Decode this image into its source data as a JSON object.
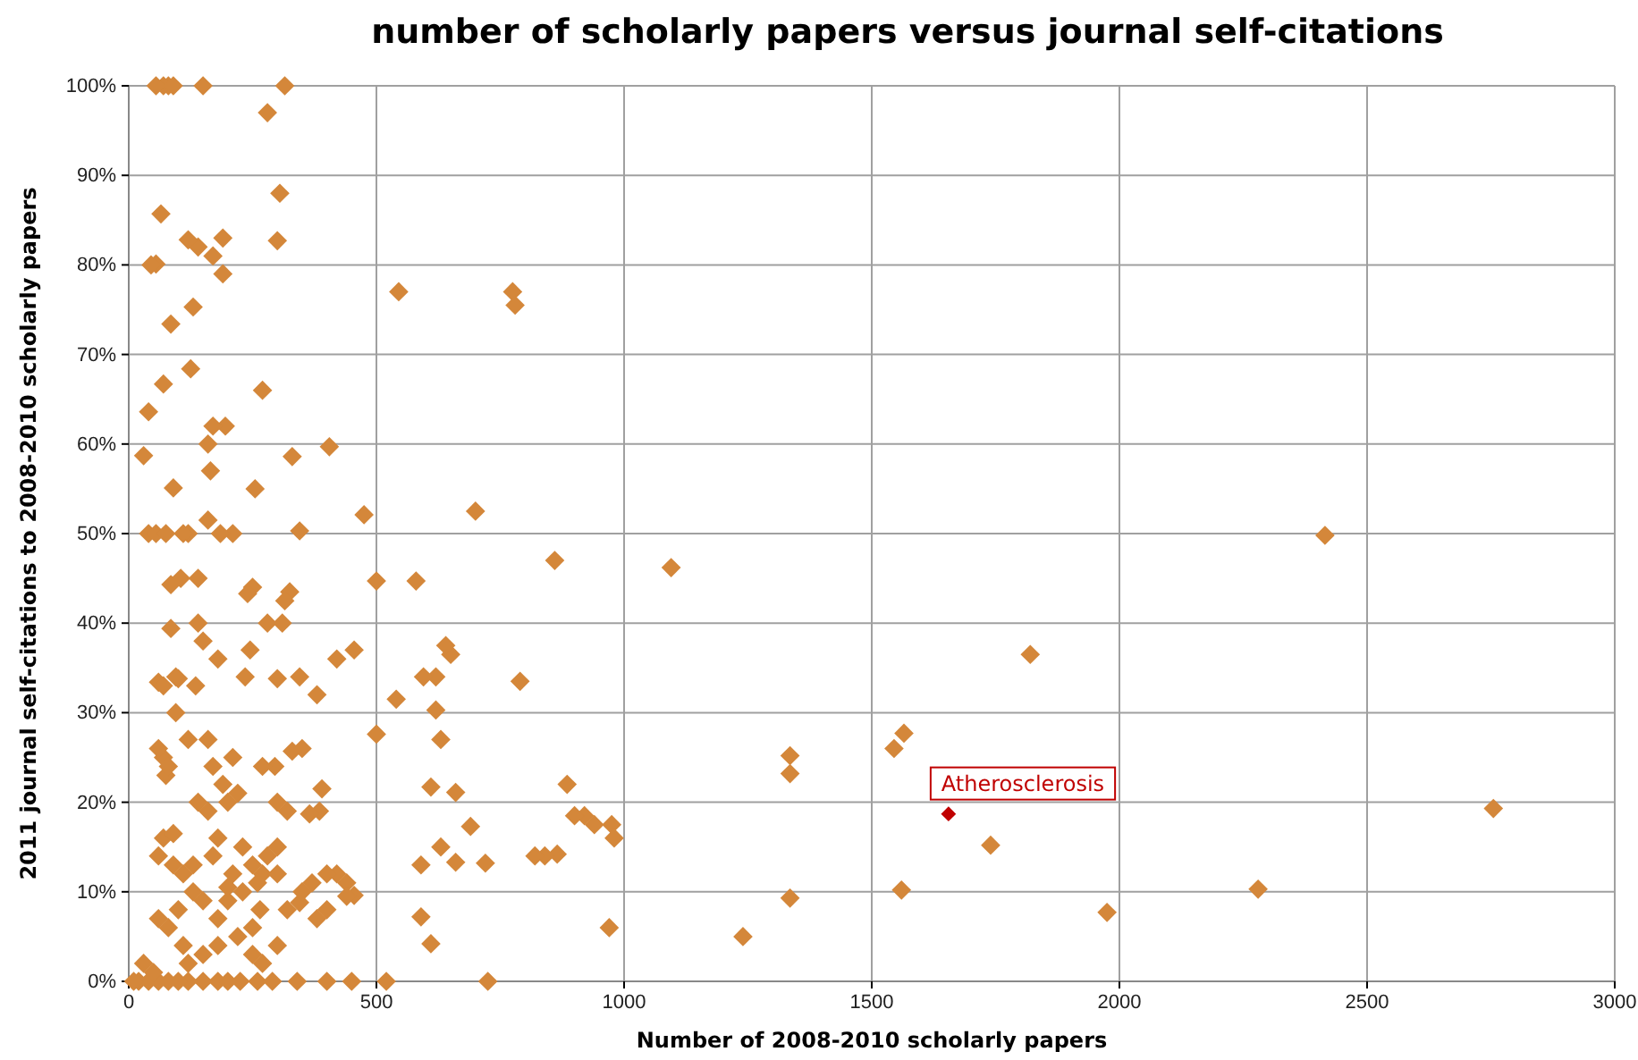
{
  "chart_data": {
    "type": "scatter",
    "title": "number of scholarly papers versus journal self-citations",
    "xlabel": "Number of 2008-2010 scholarly papers",
    "ylabel": "2011 journal self-citations to 2008-2010 scholarly papers",
    "xlim": [
      0,
      3000
    ],
    "ylim": [
      0,
      100
    ],
    "xticks": [
      0,
      500,
      1000,
      1500,
      2000,
      2500,
      3000
    ],
    "yticks": [
      {
        "value": 0,
        "label": "0%"
      },
      {
        "value": 10,
        "label": "10%"
      },
      {
        "value": 20,
        "label": "20%"
      },
      {
        "value": 30,
        "label": "30%"
      },
      {
        "value": 40,
        "label": "40%"
      },
      {
        "value": 50,
        "label": "50%"
      },
      {
        "value": 60,
        "label": "60%"
      },
      {
        "value": 70,
        "label": "70%"
      },
      {
        "value": 80,
        "label": "80%"
      },
      {
        "value": 90,
        "label": "90%"
      },
      {
        "value": 100,
        "label": "100%"
      }
    ],
    "grid": true,
    "marker": "diamond",
    "series": [
      {
        "color": "#d4873a",
        "x": [
          2415,
          1820,
          2755,
          2280,
          1975,
          1740,
          1560,
          1565,
          1545,
          1335,
          1335,
          1335,
          1240,
          1095,
          975,
          980,
          970,
          940,
          920,
          900,
          885,
          865,
          840,
          820,
          790,
          860,
          775,
          780,
          700,
          720,
          690,
          725,
          660,
          660,
          650,
          640,
          630,
          630,
          620,
          620,
          610,
          610,
          590,
          590,
          595,
          580,
          545,
          540,
          520,
          500,
          500,
          475,
          455,
          455,
          440,
          450,
          420,
          420,
          405,
          400,
          400,
          390,
          385,
          380,
          370,
          365,
          350,
          345,
          345,
          345,
          340,
          330,
          330,
          325,
          315,
          320,
          315,
          305,
          300,
          310,
          300,
          295,
          280,
          270,
          280,
          270,
          270,
          265,
          255,
          250,
          245,
          240,
          235,
          225,
          220,
          210,
          195,
          190,
          190,
          185,
          180,
          170,
          170,
          165,
          160,
          160,
          150,
          140,
          140,
          135,
          130,
          125,
          120,
          120,
          110,
          105,
          100,
          95,
          90,
          85,
          80,
          70,
          55,
          90,
          65,
          55,
          45,
          30,
          40,
          40,
          55,
          70,
          75,
          85,
          85,
          70,
          75,
          60,
          60,
          70,
          70,
          60,
          90,
          95,
          80,
          110,
          120,
          140,
          150,
          160,
          170,
          180,
          190,
          200,
          210,
          230,
          250,
          260,
          200,
          180,
          150,
          130,
          110,
          100,
          80,
          60,
          120,
          150,
          180,
          220,
          250,
          300,
          300,
          320,
          180,
          150,
          120,
          100,
          80,
          60,
          40,
          20,
          10,
          200,
          260,
          290,
          350,
          380,
          400,
          440,
          200,
          230,
          280,
          250,
          30,
          50,
          270,
          300,
          300,
          210,
          90,
          130,
          140,
          160,
          170
        ],
        "values": [
          49.8,
          36.5,
          19.3,
          10.3,
          7.7,
          15.2,
          10.2,
          27.7,
          26,
          25.2,
          23.2,
          9.3,
          5,
          46.2,
          17.5,
          16,
          6,
          17.5,
          18.5,
          18.5,
          22,
          14.2,
          14,
          14,
          33.5,
          47,
          77,
          75.5,
          52.5,
          13.2,
          17.3,
          0,
          13.3,
          21.1,
          36.5,
          37.5,
          15,
          27,
          30.3,
          34,
          21.7,
          4.2,
          7.2,
          13,
          34,
          44.7,
          77,
          31.5,
          0,
          44.7,
          27.6,
          52.1,
          37,
          9.6,
          11,
          0,
          36,
          12,
          59.7,
          0,
          8,
          21.5,
          19,
          32,
          11,
          18.7,
          26,
          50.3,
          34,
          8.8,
          0,
          58.6,
          25.7,
          43.5,
          42.5,
          19,
          100,
          88,
          82.7,
          40,
          33.8,
          24,
          40,
          66,
          97,
          24,
          12,
          8,
          55,
          44,
          37,
          43.3,
          34,
          0,
          21,
          50,
          62,
          83,
          79,
          50,
          36,
          81,
          62,
          57,
          60,
          51.5,
          100,
          82,
          45,
          33,
          75.3,
          68.4,
          82.8,
          50,
          50,
          45,
          33.8,
          30,
          55.1,
          73.4,
          100,
          100,
          100,
          100,
          85.7,
          80.1,
          80,
          58.7,
          63.6,
          50,
          50,
          66.7,
          50,
          44.3,
          39.4,
          25,
          23,
          26,
          33.4,
          33,
          16,
          14,
          16.5,
          34,
          24,
          12,
          27,
          40,
          38,
          27,
          24,
          16,
          22,
          20,
          12,
          15,
          13,
          11,
          9,
          7,
          9,
          10,
          4,
          8,
          6,
          7,
          2,
          3,
          4,
          5,
          3,
          12,
          4,
          8,
          0,
          0,
          0,
          0,
          0,
          0,
          0,
          0,
          0,
          0,
          0,
          0,
          10,
          7,
          12,
          9.5,
          10.5,
          10,
          14,
          6,
          2,
          1,
          2,
          15,
          20,
          25,
          13,
          13,
          20,
          19,
          14
        ]
      },
      {
        "name": "Atherosclerosis",
        "color": "#c00000",
        "x": [
          1655
        ],
        "values": [
          18.7
        ]
      }
    ]
  }
}
